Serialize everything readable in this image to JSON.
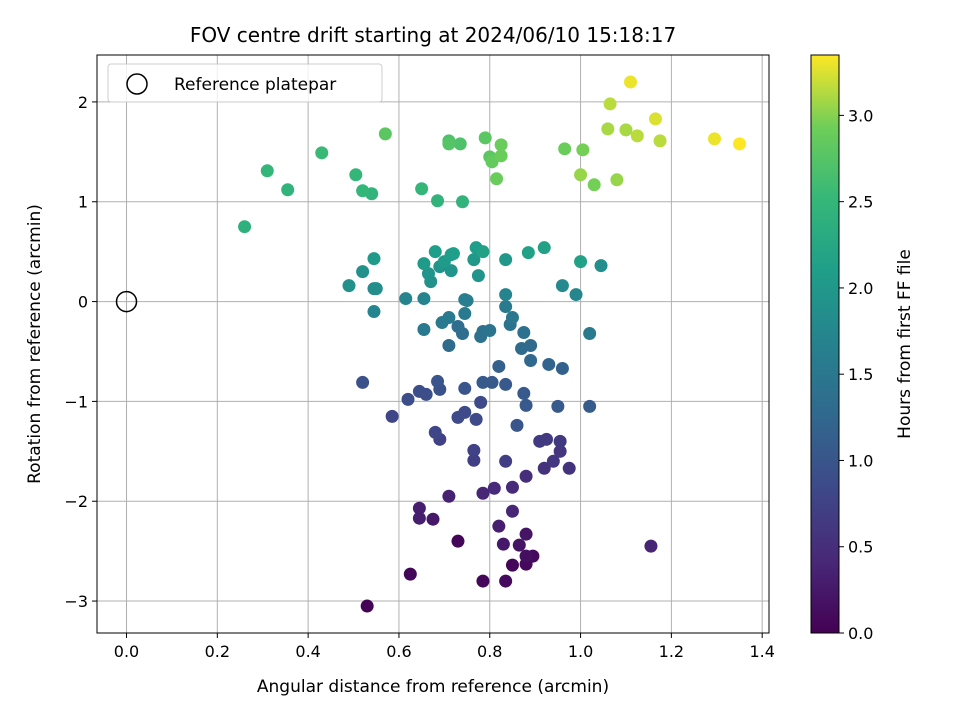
{
  "chart_data": {
    "type": "scatter",
    "title": "FOV centre drift starting at 2024/06/10 15:18:17",
    "xlabel": "Angular distance from reference (arcmin)",
    "ylabel": "Rotation from reference (arcmin)",
    "xlim": [
      -0.065,
      1.415
    ],
    "ylim": [
      -3.32,
      2.47
    ],
    "xticks": [
      0.0,
      0.2,
      0.4,
      0.6,
      0.8,
      1.0,
      1.2,
      1.4
    ],
    "xtick_labels": [
      "0.0",
      "0.2",
      "0.4",
      "0.6",
      "0.8",
      "1.0",
      "1.2",
      "1.4"
    ],
    "yticks": [
      -3,
      -2,
      -1,
      0,
      1,
      2
    ],
    "ytick_labels": [
      "−3",
      "−2",
      "−1",
      "0",
      "1",
      "2"
    ],
    "grid": true,
    "legend": {
      "placement": "top-left",
      "entries": [
        {
          "label": "Reference platepar",
          "marker": "open-circle"
        }
      ]
    },
    "reference_point": {
      "x": 0.0,
      "y": 0.0
    },
    "colorbar": {
      "label": "Hours from first FF file",
      "colormap": "viridis",
      "range": [
        0.0,
        3.35
      ],
      "ticks": [
        0.0,
        0.5,
        1.0,
        1.5,
        2.0,
        2.5,
        3.0
      ],
      "tick_labels": [
        "0.0",
        "0.5",
        "1.0",
        "1.5",
        "2.0",
        "2.5",
        "3.0"
      ]
    },
    "points": [
      {
        "x": 0.53,
        "y": -3.05,
        "c": 0.02
      },
      {
        "x": 0.625,
        "y": -2.73,
        "c": 0.05
      },
      {
        "x": 0.785,
        "y": -2.8,
        "c": 0.06
      },
      {
        "x": 0.835,
        "y": -2.8,
        "c": 0.1
      },
      {
        "x": 0.73,
        "y": -2.4,
        "c": 0.05
      },
      {
        "x": 0.85,
        "y": -2.64,
        "c": 0.05
      },
      {
        "x": 0.88,
        "y": -2.63,
        "c": 0.08
      },
      {
        "x": 0.895,
        "y": -2.55,
        "c": 0.1
      },
      {
        "x": 0.88,
        "y": -2.55,
        "c": 0.15
      },
      {
        "x": 0.88,
        "y": -2.33,
        "c": 0.2
      },
      {
        "x": 0.865,
        "y": -2.44,
        "c": 0.2
      },
      {
        "x": 0.83,
        "y": -2.43,
        "c": 0.25
      },
      {
        "x": 0.82,
        "y": -2.25,
        "c": 0.3
      },
      {
        "x": 0.675,
        "y": -2.18,
        "c": 0.25
      },
      {
        "x": 0.645,
        "y": -2.17,
        "c": 0.3
      },
      {
        "x": 0.645,
        "y": -2.07,
        "c": 0.3
      },
      {
        "x": 0.71,
        "y": -1.95,
        "c": 0.35
      },
      {
        "x": 0.85,
        "y": -2.1,
        "c": 0.4
      },
      {
        "x": 1.155,
        "y": -2.45,
        "c": 0.4
      },
      {
        "x": 0.785,
        "y": -1.92,
        "c": 0.4
      },
      {
        "x": 0.81,
        "y": -1.87,
        "c": 0.45
      },
      {
        "x": 0.85,
        "y": -1.86,
        "c": 0.45
      },
      {
        "x": 0.88,
        "y": -1.75,
        "c": 0.5
      },
      {
        "x": 0.92,
        "y": -1.67,
        "c": 0.55
      },
      {
        "x": 0.94,
        "y": -1.6,
        "c": 0.6
      },
      {
        "x": 0.975,
        "y": -1.67,
        "c": 0.55
      },
      {
        "x": 0.955,
        "y": -1.5,
        "c": 0.6
      },
      {
        "x": 0.955,
        "y": -1.4,
        "c": 0.65
      },
      {
        "x": 0.925,
        "y": -1.38,
        "c": 0.65
      },
      {
        "x": 0.91,
        "y": -1.4,
        "c": 0.65
      },
      {
        "x": 0.835,
        "y": -1.6,
        "c": 0.7
      },
      {
        "x": 0.765,
        "y": -1.59,
        "c": 0.7
      },
      {
        "x": 0.765,
        "y": -1.49,
        "c": 0.75
      },
      {
        "x": 0.69,
        "y": -1.38,
        "c": 0.75
      },
      {
        "x": 0.68,
        "y": -1.31,
        "c": 0.8
      },
      {
        "x": 0.585,
        "y": -1.15,
        "c": 0.8
      },
      {
        "x": 0.73,
        "y": -1.16,
        "c": 0.85
      },
      {
        "x": 0.745,
        "y": -1.11,
        "c": 0.85
      },
      {
        "x": 0.77,
        "y": -1.18,
        "c": 0.85
      },
      {
        "x": 0.78,
        "y": -1.01,
        "c": 0.85
      },
      {
        "x": 0.62,
        "y": -0.98,
        "c": 0.9
      },
      {
        "x": 0.645,
        "y": -0.9,
        "c": 0.9
      },
      {
        "x": 0.66,
        "y": -0.93,
        "c": 0.9
      },
      {
        "x": 0.69,
        "y": -0.88,
        "c": 0.95
      },
      {
        "x": 0.685,
        "y": -0.8,
        "c": 1.0
      },
      {
        "x": 0.52,
        "y": -0.81,
        "c": 0.95
      },
      {
        "x": 0.745,
        "y": -0.87,
        "c": 1.0
      },
      {
        "x": 0.785,
        "y": -0.81,
        "c": 1.05
      },
      {
        "x": 0.805,
        "y": -0.81,
        "c": 1.05
      },
      {
        "x": 0.835,
        "y": -0.83,
        "c": 1.05
      },
      {
        "x": 0.875,
        "y": -0.92,
        "c": 1.05
      },
      {
        "x": 0.88,
        "y": -1.04,
        "c": 1.05
      },
      {
        "x": 0.86,
        "y": -1.24,
        "c": 1.0
      },
      {
        "x": 0.95,
        "y": -1.05,
        "c": 1.05
      },
      {
        "x": 1.02,
        "y": -1.05,
        "c": 1.1
      },
      {
        "x": 0.82,
        "y": -0.65,
        "c": 1.15
      },
      {
        "x": 0.93,
        "y": -0.63,
        "c": 1.2
      },
      {
        "x": 0.96,
        "y": -0.67,
        "c": 1.15
      },
      {
        "x": 0.89,
        "y": -0.59,
        "c": 1.25
      },
      {
        "x": 0.87,
        "y": -0.47,
        "c": 1.3
      },
      {
        "x": 0.89,
        "y": -0.44,
        "c": 1.3
      },
      {
        "x": 0.71,
        "y": -0.44,
        "c": 1.3
      },
      {
        "x": 0.74,
        "y": -0.32,
        "c": 1.35
      },
      {
        "x": 0.73,
        "y": -0.25,
        "c": 1.35
      },
      {
        "x": 0.78,
        "y": -0.35,
        "c": 1.4
      },
      {
        "x": 0.785,
        "y": -0.3,
        "c": 1.4
      },
      {
        "x": 0.8,
        "y": -0.29,
        "c": 1.45
      },
      {
        "x": 0.875,
        "y": -0.31,
        "c": 1.4
      },
      {
        "x": 0.845,
        "y": -0.23,
        "c": 1.45
      },
      {
        "x": 0.85,
        "y": -0.16,
        "c": 1.5
      },
      {
        "x": 0.835,
        "y": -0.05,
        "c": 1.55
      },
      {
        "x": 0.745,
        "y": -0.12,
        "c": 1.55
      },
      {
        "x": 0.71,
        "y": -0.16,
        "c": 1.55
      },
      {
        "x": 0.695,
        "y": -0.21,
        "c": 1.55
      },
      {
        "x": 0.655,
        "y": -0.28,
        "c": 1.55
      },
      {
        "x": 1.02,
        "y": -0.32,
        "c": 1.55
      },
      {
        "x": 0.75,
        "y": 0.01,
        "c": 1.6
      },
      {
        "x": 0.745,
        "y": 0.02,
        "c": 1.6
      },
      {
        "x": 0.655,
        "y": 0.03,
        "c": 1.7
      },
      {
        "x": 0.615,
        "y": 0.03,
        "c": 1.7
      },
      {
        "x": 0.545,
        "y": -0.1,
        "c": 1.7
      },
      {
        "x": 0.835,
        "y": 0.07,
        "c": 1.7
      },
      {
        "x": 0.99,
        "y": 0.07,
        "c": 1.75
      },
      {
        "x": 0.96,
        "y": 0.16,
        "c": 1.8
      },
      {
        "x": 1.045,
        "y": 0.36,
        "c": 1.85
      },
      {
        "x": 0.545,
        "y": 0.13,
        "c": 1.85
      },
      {
        "x": 0.55,
        "y": 0.13,
        "c": 1.85
      },
      {
        "x": 0.49,
        "y": 0.16,
        "c": 1.9
      },
      {
        "x": 0.52,
        "y": 0.3,
        "c": 1.9
      },
      {
        "x": 0.67,
        "y": 0.2,
        "c": 1.9
      },
      {
        "x": 0.665,
        "y": 0.28,
        "c": 1.95
      },
      {
        "x": 0.69,
        "y": 0.35,
        "c": 1.95
      },
      {
        "x": 0.715,
        "y": 0.31,
        "c": 1.95
      },
      {
        "x": 0.775,
        "y": 0.26,
        "c": 1.95
      },
      {
        "x": 0.765,
        "y": 0.42,
        "c": 2.0
      },
      {
        "x": 0.835,
        "y": 0.42,
        "c": 2.0
      },
      {
        "x": 0.655,
        "y": 0.38,
        "c": 2.05
      },
      {
        "x": 0.545,
        "y": 0.43,
        "c": 2.05
      },
      {
        "x": 0.7,
        "y": 0.4,
        "c": 2.05
      },
      {
        "x": 0.715,
        "y": 0.47,
        "c": 2.1
      },
      {
        "x": 0.72,
        "y": 0.48,
        "c": 2.1
      },
      {
        "x": 0.68,
        "y": 0.5,
        "c": 2.1
      },
      {
        "x": 0.77,
        "y": 0.54,
        "c": 2.1
      },
      {
        "x": 0.785,
        "y": 0.5,
        "c": 2.15
      },
      {
        "x": 0.885,
        "y": 0.49,
        "c": 2.15
      },
      {
        "x": 0.92,
        "y": 0.54,
        "c": 2.15
      },
      {
        "x": 1.0,
        "y": 0.4,
        "c": 2.15
      },
      {
        "x": 0.26,
        "y": 0.75,
        "c": 2.4
      },
      {
        "x": 0.74,
        "y": 1.0,
        "c": 2.45
      },
      {
        "x": 0.685,
        "y": 1.01,
        "c": 2.45
      },
      {
        "x": 0.355,
        "y": 1.12,
        "c": 2.45
      },
      {
        "x": 0.54,
        "y": 1.08,
        "c": 2.45
      },
      {
        "x": 0.52,
        "y": 1.11,
        "c": 2.5
      },
      {
        "x": 0.65,
        "y": 1.13,
        "c": 2.5
      },
      {
        "x": 0.31,
        "y": 1.31,
        "c": 2.5
      },
      {
        "x": 0.505,
        "y": 1.27,
        "c": 2.5
      },
      {
        "x": 0.43,
        "y": 1.49,
        "c": 2.55
      },
      {
        "x": 0.71,
        "y": 1.61,
        "c": 2.7
      },
      {
        "x": 0.735,
        "y": 1.58,
        "c": 2.7
      },
      {
        "x": 0.71,
        "y": 1.58,
        "c": 2.75
      },
      {
        "x": 0.57,
        "y": 1.68,
        "c": 2.8
      },
      {
        "x": 0.79,
        "y": 1.64,
        "c": 2.8
      },
      {
        "x": 0.8,
        "y": 1.45,
        "c": 2.8
      },
      {
        "x": 0.805,
        "y": 1.4,
        "c": 2.85
      },
      {
        "x": 0.825,
        "y": 1.46,
        "c": 2.9
      },
      {
        "x": 0.815,
        "y": 1.23,
        "c": 2.9
      },
      {
        "x": 0.825,
        "y": 1.57,
        "c": 2.9
      },
      {
        "x": 0.965,
        "y": 1.53,
        "c": 2.9
      },
      {
        "x": 1.005,
        "y": 1.52,
        "c": 2.95
      },
      {
        "x": 1.03,
        "y": 1.17,
        "c": 2.95
      },
      {
        "x": 1.0,
        "y": 1.27,
        "c": 3.05
      },
      {
        "x": 1.08,
        "y": 1.22,
        "c": 3.05
      },
      {
        "x": 1.06,
        "y": 1.73,
        "c": 3.1
      },
      {
        "x": 1.1,
        "y": 1.72,
        "c": 3.1
      },
      {
        "x": 1.125,
        "y": 1.66,
        "c": 3.15
      },
      {
        "x": 1.175,
        "y": 1.61,
        "c": 3.15
      },
      {
        "x": 1.065,
        "y": 1.98,
        "c": 3.15
      },
      {
        "x": 1.165,
        "y": 1.83,
        "c": 3.25
      },
      {
        "x": 1.11,
        "y": 2.2,
        "c": 3.3
      },
      {
        "x": 1.295,
        "y": 1.63,
        "c": 3.3
      },
      {
        "x": 1.35,
        "y": 1.58,
        "c": 3.35
      }
    ]
  }
}
